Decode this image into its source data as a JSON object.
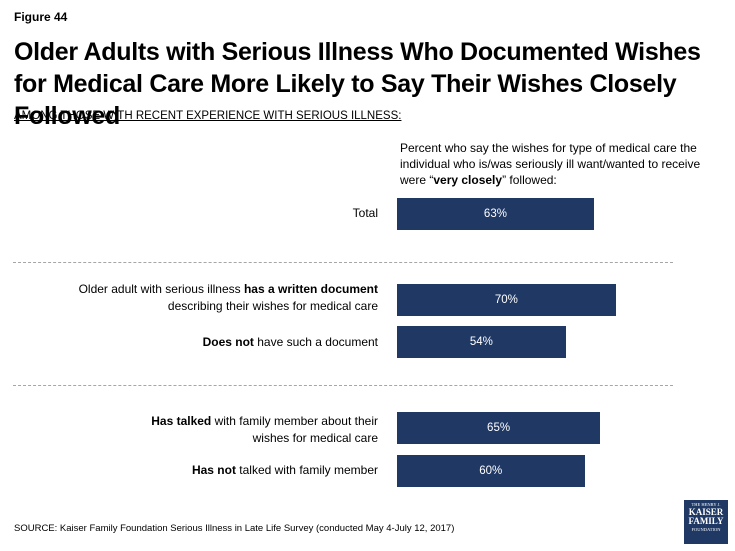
{
  "figure_label": "Figure 44",
  "chart_data": {
    "type": "bar",
    "orientation": "horizontal",
    "title": "Older Adults with Serious Illness Who Documented Wishes for Medical Care More Likely to Say Their Wishes Closely Followed",
    "subtitle": "AMONG THOSE WITH RECENT EXPERIENCE WITH SERIOUS ILLNESS:",
    "question": {
      "before": "Percent who say the wishes for type of medical care the individual who is/was seriously ill want/wanted to receive were “",
      "emphasis": "very closely",
      "after": "” followed:"
    },
    "categories": [
      "Total",
      "Older adult with serious illness has a written document describing their wishes for medical care",
      "Does not have such a document",
      "Has talked with family member about their wishes for medical care",
      "Has not talked with family member"
    ],
    "values": [
      63,
      70,
      54,
      65,
      60
    ],
    "value_labels": [
      "63%",
      "70%",
      "54%",
      "65%",
      "60%"
    ],
    "groups": [
      [
        0
      ],
      [
        1,
        2
      ],
      [
        3,
        4
      ]
    ],
    "xlim": [
      0,
      100
    ],
    "color": "#1f3864"
  },
  "labels": {
    "total": "Total",
    "written_pre": "Older adult with serious illness ",
    "written_bold": "has a written document",
    "written_line2": "describing their wishes for medical care",
    "nodoc_bold": "Does not",
    "nodoc_rest": " have such a document",
    "talked_bold": "Has talked",
    "talked_rest": " with family member about their",
    "talked_line2": "wishes for medical care",
    "nottalked_bold": "Has not",
    "nottalked_rest": " talked with family member"
  },
  "source": "SOURCE: Kaiser Family Foundation Serious Illness in Late Life Survey (conducted May 4-July 12, 2017)",
  "logo": {
    "line1": "THE HENRY J.",
    "line2": "KAISER",
    "line3": "FAMILY",
    "line4": "FOUNDATION",
    "color": "#1f3864"
  }
}
